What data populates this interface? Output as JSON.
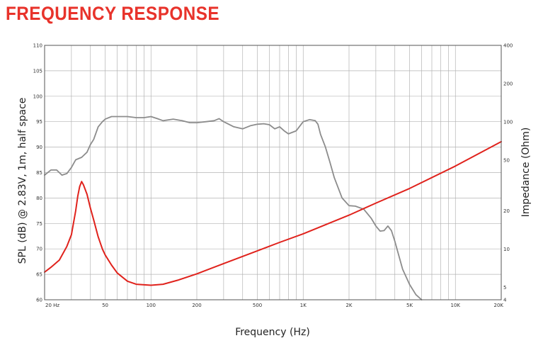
{
  "title": "FREQUENCY RESPONSE",
  "chart_data": {
    "type": "line",
    "xlabel": "Frequency (Hz)",
    "ylabel": "SPL (dB) @ 2.83V, 1m, half space",
    "y2label": "Impedance (Ohm)",
    "x_scale": "log",
    "y2_scale": "log",
    "xlim": [
      20,
      20000
    ],
    "ylim": [
      60,
      110
    ],
    "y2lim": [
      4,
      400
    ],
    "grid": true,
    "x_ticks": [
      {
        "value": 20,
        "label": "20 Hz"
      },
      {
        "value": 50,
        "label": "50"
      },
      {
        "value": 100,
        "label": "100"
      },
      {
        "value": 200,
        "label": "200"
      },
      {
        "value": 500,
        "label": "500"
      },
      {
        "value": 1000,
        "label": "1K"
      },
      {
        "value": 2000,
        "label": "2K"
      },
      {
        "value": 5000,
        "label": "5K"
      },
      {
        "value": 10000,
        "label": "10K"
      },
      {
        "value": 20000,
        "label": "20K"
      }
    ],
    "y_ticks": [
      {
        "value": 60,
        "label": "60"
      },
      {
        "value": 65,
        "label": "65"
      },
      {
        "value": 70,
        "label": "70"
      },
      {
        "value": 75,
        "label": "75"
      },
      {
        "value": 80,
        "label": "80"
      },
      {
        "value": 85,
        "label": "85"
      },
      {
        "value": 90,
        "label": "90"
      },
      {
        "value": 95,
        "label": "95"
      },
      {
        "value": 100,
        "label": "100"
      },
      {
        "value": 105,
        "label": "105"
      },
      {
        "value": 110,
        "label": "110"
      }
    ],
    "y2_ticks": [
      {
        "value": 4,
        "label": "4"
      },
      {
        "value": 5,
        "label": "5"
      },
      {
        "value": 10,
        "label": "10"
      },
      {
        "value": 20,
        "label": "20"
      },
      {
        "value": 50,
        "label": "50"
      },
      {
        "value": 100,
        "label": "100"
      },
      {
        "value": 200,
        "label": "200"
      },
      {
        "value": 400,
        "label": "400"
      }
    ],
    "series": [
      {
        "axis": "left",
        "color": "#8c8c8c",
        "x": [
          20,
          22,
          24,
          26,
          28,
          30,
          32,
          35,
          38,
          40,
          42,
          45,
          48,
          50,
          55,
          60,
          70,
          80,
          90,
          100,
          110,
          120,
          140,
          160,
          180,
          200,
          230,
          260,
          280,
          300,
          350,
          400,
          450,
          500,
          550,
          600,
          650,
          700,
          750,
          800,
          900,
          1000,
          1100,
          1200,
          1250,
          1300,
          1400,
          1500,
          1600,
          1800,
          2000,
          2200,
          2500,
          2800,
          3000,
          3200,
          3400,
          3600,
          3800,
          4000,
          4500,
          5000,
          5500,
          6000
        ],
        "y": [
          84.5,
          85.5,
          85.5,
          84.5,
          84.8,
          86,
          87.5,
          88,
          89,
          90.5,
          91.5,
          94,
          95,
          95.5,
          96,
          96,
          96,
          95.8,
          95.8,
          96,
          95.6,
          95.2,
          95.5,
          95.2,
          94.8,
          94.8,
          95,
          95.2,
          95.6,
          95,
          94,
          93.6,
          94.2,
          94.5,
          94.6,
          94.4,
          93.6,
          94,
          93.2,
          92.6,
          93.2,
          95,
          95.4,
          95.2,
          94.5,
          92.5,
          90,
          87,
          84,
          80,
          78.5,
          78.4,
          77.8,
          76,
          74.5,
          73.5,
          73.6,
          74.5,
          73.6,
          71.5,
          66,
          63,
          61,
          60
        ]
      },
      {
        "axis": "right",
        "color": "#e0221c",
        "x": [
          20,
          22,
          25,
          28,
          30,
          32,
          33,
          34,
          35,
          36,
          38,
          40,
          42,
          45,
          48,
          50,
          55,
          60,
          70,
          80,
          100,
          120,
          150,
          200,
          300,
          500,
          700,
          1000,
          2000,
          3000,
          5000,
          10000,
          20000
        ],
        "y": [
          6.6,
          7.2,
          8.2,
          10.5,
          13,
          20,
          26,
          31,
          34,
          32,
          27,
          21,
          17,
          12.5,
          10,
          9,
          7.5,
          6.5,
          5.6,
          5.3,
          5.2,
          5.3,
          5.7,
          6.4,
          7.7,
          9.7,
          11.3,
          13.2,
          18.5,
          23,
          30,
          45,
          70
        ]
      }
    ]
  }
}
